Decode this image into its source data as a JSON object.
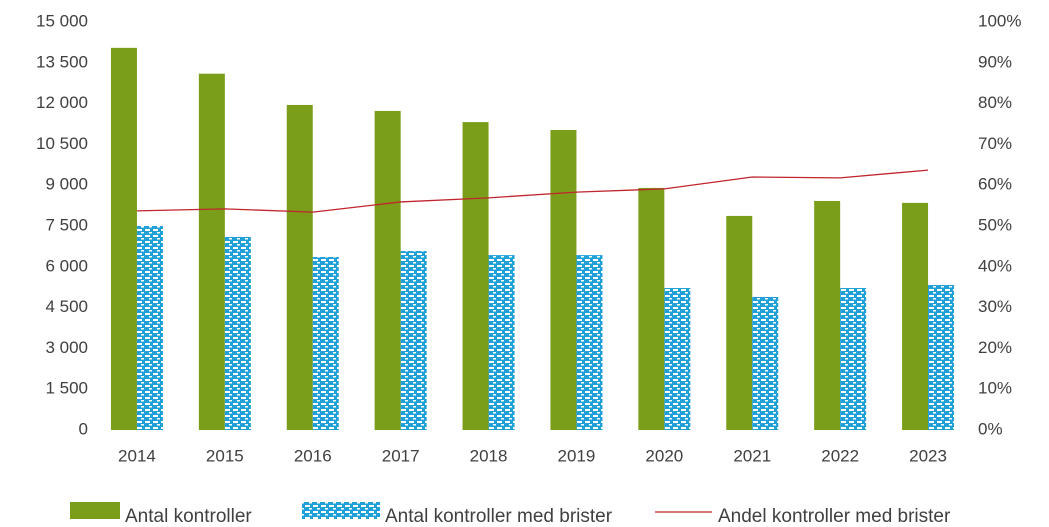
{
  "chart_data": {
    "type": "bar",
    "categories": [
      "2014",
      "2015",
      "2016",
      "2017",
      "2018",
      "2019",
      "2020",
      "2021",
      "2022",
      "2023"
    ],
    "series": [
      {
        "name": "Antal kontroller",
        "color": "#7a9e1a",
        "values": [
          14050,
          13100,
          11950,
          11730,
          11320,
          11030,
          8900,
          7870,
          8420,
          8350
        ]
      },
      {
        "name": "Antal kontroller med brister",
        "color": "#1fa0d8",
        "values": [
          7500,
          7100,
          6360,
          6580,
          6430,
          6430,
          5220,
          4890,
          5220,
          5330
        ]
      },
      {
        "name": "Andel kontroller med brister",
        "color": "#c0262c",
        "type": "line",
        "axis": "y2",
        "values": [
          53.7,
          54.2,
          53.4,
          55.9,
          56.9,
          58.3,
          59.1,
          62.0,
          61.8,
          63.7
        ]
      }
    ],
    "ylim": [
      0,
      15000
    ],
    "yticks": [
      0,
      {
        "value": 1500,
        "label": "1 500"
      },
      {
        "value": 3000,
        "label": "3 000"
      },
      {
        "value": 4500,
        "label": "4 500"
      },
      {
        "value": 6000,
        "label": "6 000"
      },
      {
        "value": 7500,
        "label": "7 500"
      },
      {
        "value": 9000,
        "label": "9 000"
      },
      {
        "value": 10500,
        "label": "10 500"
      },
      {
        "value": 12000,
        "label": "12 000"
      },
      {
        "value": 13500,
        "label": "13 500"
      },
      {
        "value": 15000,
        "label": "15 000"
      }
    ],
    "y2lim": [
      0,
      100
    ],
    "y2ticks": [
      {
        "value": 0,
        "label": "0%"
      },
      {
        "value": 10,
        "label": "10%"
      },
      {
        "value": 20,
        "label": "20%"
      },
      {
        "value": 30,
        "label": "30%"
      },
      {
        "value": 40,
        "label": "40%"
      },
      {
        "value": 50,
        "label": "50%"
      },
      {
        "value": 60,
        "label": "60%"
      },
      {
        "value": 70,
        "label": "70%"
      },
      {
        "value": 80,
        "label": "80%"
      },
      {
        "value": 90,
        "label": "90%"
      },
      {
        "value": 100,
        "label": "100%"
      }
    ],
    "grid": false,
    "legend": "bottom"
  }
}
